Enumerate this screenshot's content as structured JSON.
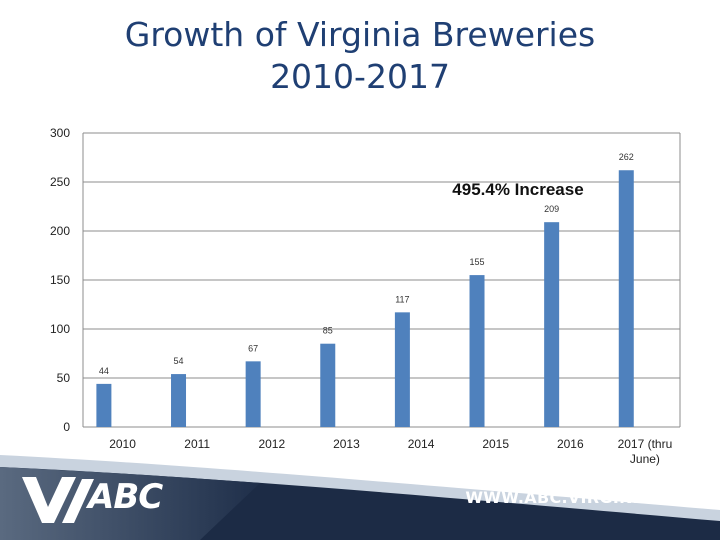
{
  "title_line1": "Growth of Virginia Breweries",
  "title_line2": "2010-2017",
  "footer": {
    "website": "WWW.ABC.VIRGINIA.GOV",
    "logo_text": "ABC"
  },
  "colors": {
    "bar": "#4f81bd",
    "title": "#1f3f73",
    "grid": "#8c8c8c"
  },
  "chart_data": {
    "type": "bar",
    "title": "Growth of Virginia Breweries 2010-2017",
    "categories": [
      "2010",
      "2011",
      "2012",
      "2013",
      "2014",
      "2015",
      "2016",
      "2017 (thru June)"
    ],
    "values": [
      44,
      54,
      67,
      85,
      117,
      155,
      209,
      262
    ],
    "ylim": [
      0,
      300
    ],
    "yticks": [
      0,
      50,
      100,
      150,
      200,
      250,
      300
    ],
    "grid": true,
    "annotation": "495.4% Increase"
  }
}
